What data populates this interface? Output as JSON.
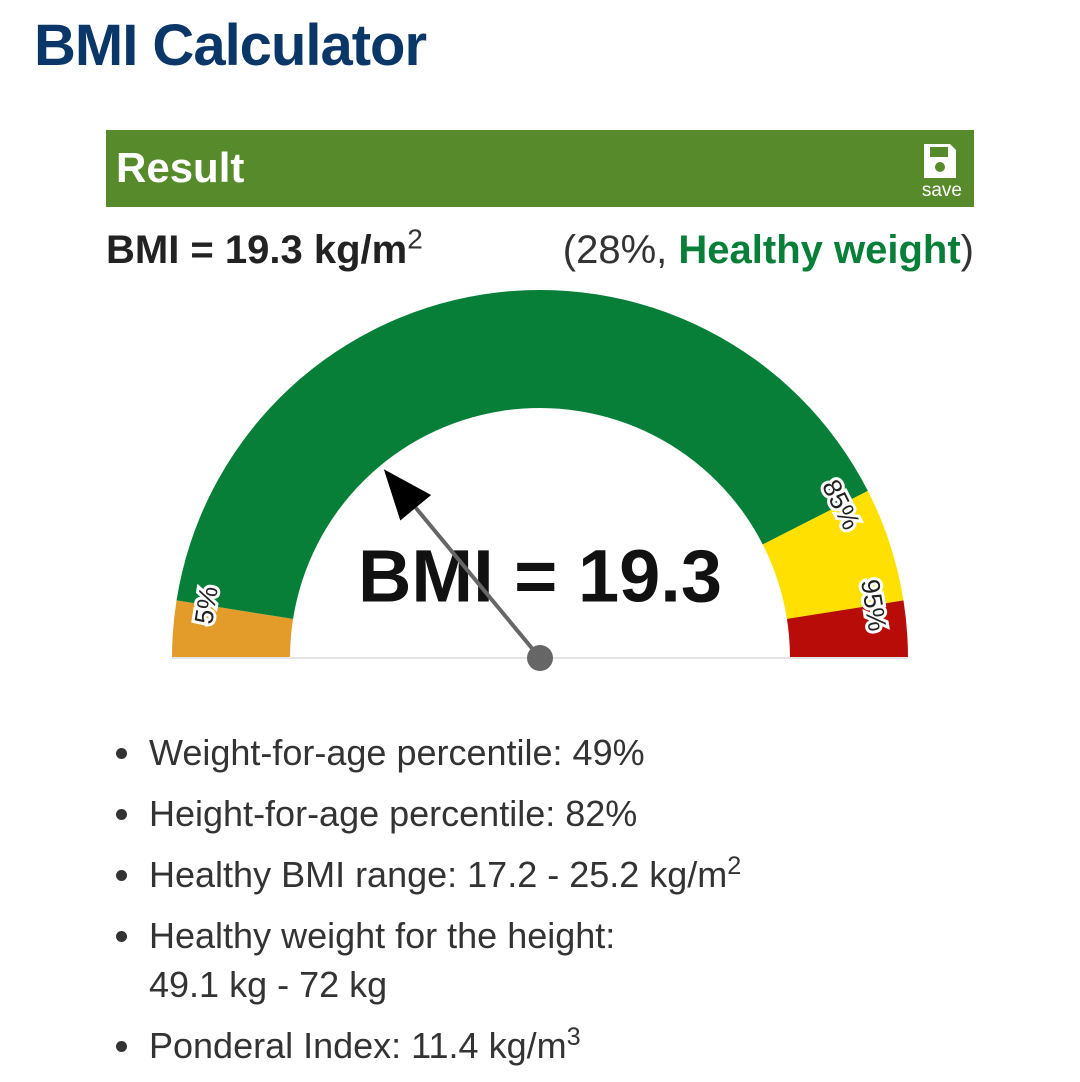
{
  "header": {
    "title": "BMI Calculator",
    "section": "Result",
    "save": "save"
  },
  "result": {
    "bmi_label": "BMI = 19.3 kg/m",
    "bmi_power": "2",
    "percentile_text": "(28%, ",
    "category": "Healthy weight",
    "close": ")"
  },
  "gauge": {
    "range": [
      0,
      100
    ],
    "ticks": [
      {
        "value": 5,
        "label": "5%"
      },
      {
        "value": 85,
        "label": "85%"
      },
      {
        "value": 95,
        "label": "95%"
      }
    ],
    "colors": [
      "#e39b2a",
      "#087f38",
      "#ffe000",
      "#b80c09"
    ],
    "needle": 28,
    "center_text": "BMI = 19.3"
  },
  "details": [
    {
      "lines": [
        "Weight-for-age percentile: 49%"
      ]
    },
    {
      "lines": [
        "Height-for-age percentile: 82%"
      ]
    },
    {
      "lines": [
        "Healthy BMI range: 17.2 - 25.2 kg/m"
      ],
      "power": "2"
    },
    {
      "lines": [
        "Healthy weight for the height:",
        "49.1 kg - 72 kg"
      ]
    },
    {
      "lines": [
        "Ponderal Index: 11.4 kg/m"
      ],
      "power": "3"
    }
  ]
}
